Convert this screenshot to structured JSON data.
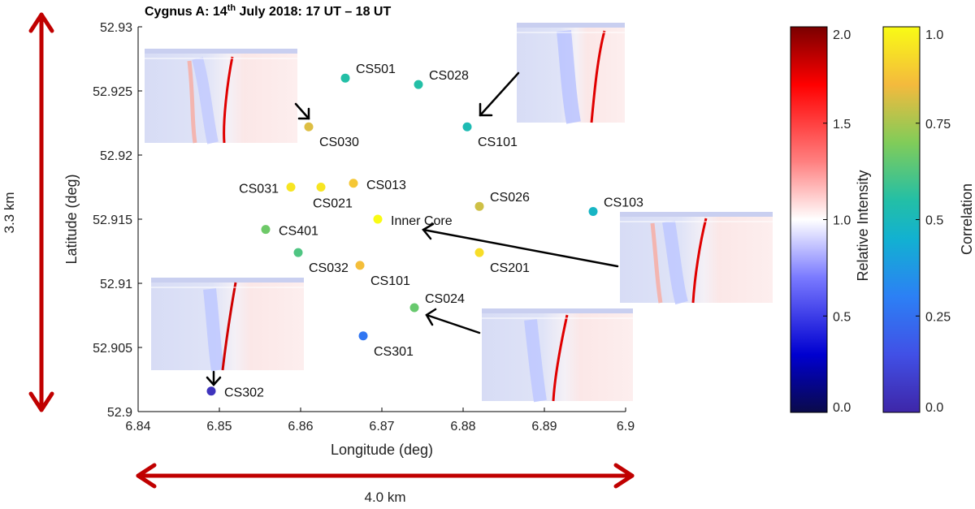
{
  "chart_data": {
    "type": "scatter",
    "title": "Cygnus A: 14th July 2018: 17 UT – 18 UT",
    "title_parts": {
      "pre": "Cygnus A: 14",
      "sup": "th",
      "post": " July 2018: 17 UT – 18 UT"
    },
    "xlabel": "Longitude (deg)",
    "ylabel": "Latitude (deg)",
    "xlim": [
      6.84,
      6.9
    ],
    "ylim": [
      52.9,
      52.93
    ],
    "xticks": [
      6.84,
      6.85,
      6.86,
      6.87,
      6.88,
      6.89,
      6.9
    ],
    "xtick_labels": [
      "6.84",
      "6.85",
      "6.86",
      "6.87",
      "6.88",
      "6.89",
      "6.9"
    ],
    "yticks": [
      52.9,
      52.905,
      52.91,
      52.915,
      52.92,
      52.925,
      52.93
    ],
    "ytick_labels": [
      "52.9",
      "52.905",
      "52.91",
      "52.915",
      "52.92",
      "52.925",
      "52.93"
    ],
    "stations": [
      {
        "name": "CS501",
        "lon": 6.8655,
        "lat": 52.926,
        "correlation": 0.55,
        "label_pos": "upper-right"
      },
      {
        "name": "CS028",
        "lon": 6.8745,
        "lat": 52.9255,
        "correlation": 0.55,
        "label_pos": "upper-right"
      },
      {
        "name": "CS030",
        "lon": 6.861,
        "lat": 52.9222,
        "correlation": 0.82,
        "label_pos": "lower-right"
      },
      {
        "name": "CS101",
        "lon": 6.8805,
        "lat": 52.9222,
        "correlation": 0.52,
        "label_pos": "lower-right"
      },
      {
        "name": "CS031",
        "lon": 6.8588,
        "lat": 52.9175,
        "correlation": 0.95,
        "label_pos": "left"
      },
      {
        "name": "CS021",
        "lon": 6.8625,
        "lat": 52.9175,
        "correlation": 0.95,
        "label_pos": "lower-left"
      },
      {
        "name": "CS013",
        "lon": 6.8665,
        "lat": 52.9178,
        "correlation": 0.88,
        "label_pos": "right"
      },
      {
        "name": "CS026",
        "lon": 6.882,
        "lat": 52.916,
        "correlation": 0.8,
        "label_pos": "upper-right"
      },
      {
        "name": "CS103",
        "lon": 6.896,
        "lat": 52.9156,
        "correlation": 0.48,
        "label_pos": "upper-right"
      },
      {
        "name": "Inner Core",
        "lon": 6.8695,
        "lat": 52.915,
        "correlation": 1.0,
        "label_pos": "right"
      },
      {
        "name": "CS401",
        "lon": 6.8557,
        "lat": 52.9142,
        "correlation": 0.67,
        "label_pos": "right"
      },
      {
        "name": "CS032",
        "lon": 6.8597,
        "lat": 52.9124,
        "correlation": 0.62,
        "label_pos": "lower-right"
      },
      {
        "name": "CS101",
        "lon": 6.8673,
        "lat": 52.9114,
        "correlation": 0.86,
        "label_pos": "lower-right"
      },
      {
        "name": "CS201",
        "lon": 6.882,
        "lat": 52.9124,
        "correlation": 0.93,
        "label_pos": "lower-right"
      },
      {
        "name": "CS024",
        "lon": 6.874,
        "lat": 52.9081,
        "correlation": 0.66,
        "label_pos": "upper-right"
      },
      {
        "name": "CS301",
        "lon": 6.8677,
        "lat": 52.9059,
        "correlation": 0.27,
        "label_pos": "lower-right"
      },
      {
        "name": "CS302",
        "lon": 6.849,
        "lat": 52.9016,
        "correlation": 0.05,
        "label_pos": "right"
      }
    ],
    "colorbars": [
      {
        "label": "Relative Intensity",
        "colormap": "blue-white-red",
        "range": [
          0,
          2
        ],
        "ticks": [
          0,
          0.5,
          1,
          1.5,
          2
        ],
        "tick_labels": [
          "0.0",
          "0.5",
          "1.0",
          "1.5",
          "2.0"
        ]
      },
      {
        "label": "Correlation",
        "colormap": "parula",
        "range": [
          0,
          1
        ],
        "ticks": [
          0,
          0.25,
          0.5,
          0.75,
          1
        ],
        "tick_labels": [
          "0.0",
          "0.25",
          "0.5",
          "0.75",
          "1.0"
        ]
      }
    ],
    "scale_bars": [
      {
        "orientation": "vertical",
        "label": "3.3 km"
      },
      {
        "orientation": "horizontal",
        "label": "4.0 km"
      }
    ],
    "insets": [
      {
        "name": "CS030 dynamic spectrum",
        "points_to": "CS030",
        "location": "upper-left"
      },
      {
        "name": "CS101 dynamic spectrum",
        "points_to": "CS101",
        "location": "upper-right"
      },
      {
        "name": "Inner Core dynamic spectrum",
        "points_to": "Inner Core",
        "location": "right"
      },
      {
        "name": "CS024 dynamic spectrum",
        "points_to": "CS024",
        "location": "lower-right"
      },
      {
        "name": "CS302 dynamic spectrum",
        "points_to": "CS302",
        "location": "lower-left"
      }
    ],
    "colors": {
      "scale_arrow": "#c00000",
      "arrow": "#000000",
      "axis": "#000000"
    }
  }
}
